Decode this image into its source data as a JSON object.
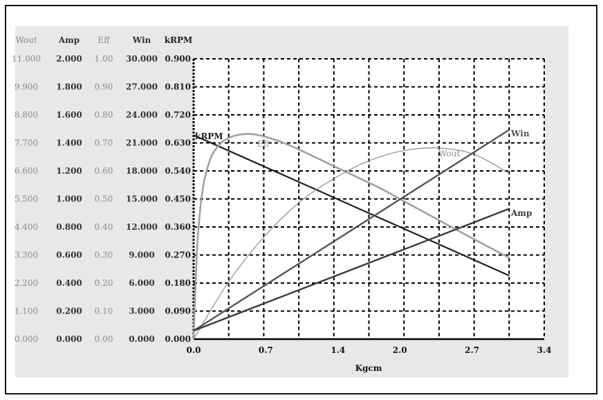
{
  "chart_data": {
    "type": "line",
    "xlabel": "Kgcm",
    "xlim": [
      0,
      3.4
    ],
    "x_ticks": [
      "0.0",
      "0.7",
      "1.4",
      "2.0",
      "2.7",
      "3.4"
    ],
    "grid": true,
    "axes": [
      {
        "name": "Wout",
        "ylim": [
          0,
          11
        ],
        "ticks": [
          "0.000",
          "1.100",
          "2.200",
          "3.300",
          "4.400",
          "5.500",
          "6.600",
          "7.700",
          "8.800",
          "9.900",
          "11.000"
        ],
        "color": "#8a8a8a"
      },
      {
        "name": "Amp",
        "ylim": [
          0,
          2
        ],
        "ticks": [
          "0.000",
          "0.200",
          "0.400",
          "0.600",
          "0.800",
          "1.000",
          "1.200",
          "1.400",
          "1.600",
          "1.800",
          "2.000"
        ],
        "color": "#333333"
      },
      {
        "name": "Eff",
        "ylim": [
          0,
          1
        ],
        "ticks": [
          "0.00",
          "0.10",
          "0.20",
          "0.30",
          "0.40",
          "0.50",
          "0.60",
          "0.70",
          "0.80",
          "0.90",
          "1.00"
        ],
        "color": "#8a8a8a"
      },
      {
        "name": "Win",
        "ylim": [
          0,
          30
        ],
        "ticks": [
          "0.000",
          "3.000",
          "6.000",
          "9.000",
          "12.000",
          "15.000",
          "18.000",
          "21.000",
          "24.000",
          "27.000",
          "30.000"
        ],
        "color": "#333333"
      },
      {
        "name": "kRPM",
        "ylim": [
          0,
          0.9
        ],
        "ticks": [
          "0.000",
          "0.090",
          "0.180",
          "0.270",
          "0.360",
          "0.450",
          "0.540",
          "0.630",
          "0.720",
          "0.810",
          "0.900"
        ],
        "color": "#222222"
      }
    ],
    "series": [
      {
        "name": "kRPM",
        "axis": "kRPM",
        "color": "#1e1e1e",
        "width": 2.2,
        "x": [
          0,
          3.06
        ],
        "y": [
          0.655,
          0.204
        ]
      },
      {
        "name": "Eff",
        "axis": "Eff",
        "color": "#a0a0a0",
        "width": 2.6,
        "x": [
          0,
          0.03,
          0.06,
          0.1,
          0.15,
          0.2,
          0.3,
          0.45,
          0.6,
          0.8,
          1.0,
          1.4,
          1.8,
          2.0,
          2.2,
          2.6,
          3.06
        ],
        "y": [
          0,
          0.3,
          0.45,
          0.56,
          0.63,
          0.67,
          0.71,
          0.73,
          0.73,
          0.71,
          0.68,
          0.61,
          0.54,
          0.5,
          0.46,
          0.38,
          0.29
        ]
      },
      {
        "name": "Wout",
        "axis": "Wout",
        "color": "#8a8a8a",
        "width": 1.2,
        "x": [
          0,
          0.34,
          0.68,
          1.02,
          1.36,
          1.7,
          2.04,
          2.38,
          2.72,
          3.06
        ],
        "y": [
          0,
          2.25,
          4.0,
          5.35,
          6.3,
          7.0,
          7.4,
          7.5,
          7.25,
          6.5
        ]
      },
      {
        "name": "Win",
        "axis": "Win",
        "color": "#555555",
        "width": 2.4,
        "x": [
          0,
          3.06
        ],
        "y": [
          0.9,
          22.4
        ]
      },
      {
        "name": "Amp",
        "axis": "Amp",
        "color": "#3a3a3a",
        "width": 2.4,
        "x": [
          0,
          3.06
        ],
        "y": [
          0.06,
          0.93
        ]
      }
    ],
    "legend": "inline curve labels"
  }
}
